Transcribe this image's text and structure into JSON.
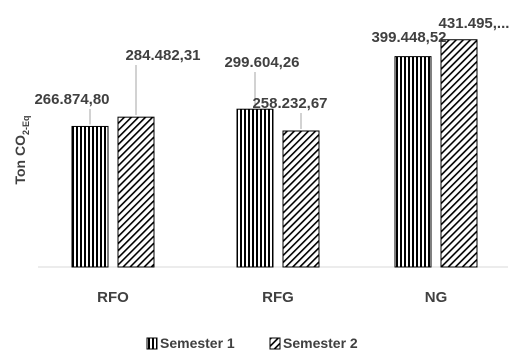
{
  "chart_data": {
    "type": "bar",
    "title": "",
    "ylabel": "Ton CO",
    "ylabel_sub": "2-Eq",
    "xlabel": "",
    "categories": [
      "RFO",
      "RFG",
      "NG"
    ],
    "ylim": [
      0,
      450000
    ],
    "grid": false,
    "legend_position": "bottom",
    "series": [
      {
        "name": "Semester 1",
        "pattern": "vertical-stripes",
        "values": [
          266874.8,
          299604.26,
          399448.52
        ],
        "labels": [
          "266.874,80",
          "299.604,26",
          "399.448,52"
        ]
      },
      {
        "name": "Semester 2",
        "pattern": "diagonal-hatch",
        "values": [
          284482.31,
          258232.67,
          431495.0
        ],
        "labels": [
          "284.482,31",
          "258.232,67",
          "431.495,..."
        ]
      }
    ],
    "colors": {
      "bar_stroke": "#000000",
      "text": "#404040",
      "axis": "#d9d9d9"
    }
  }
}
